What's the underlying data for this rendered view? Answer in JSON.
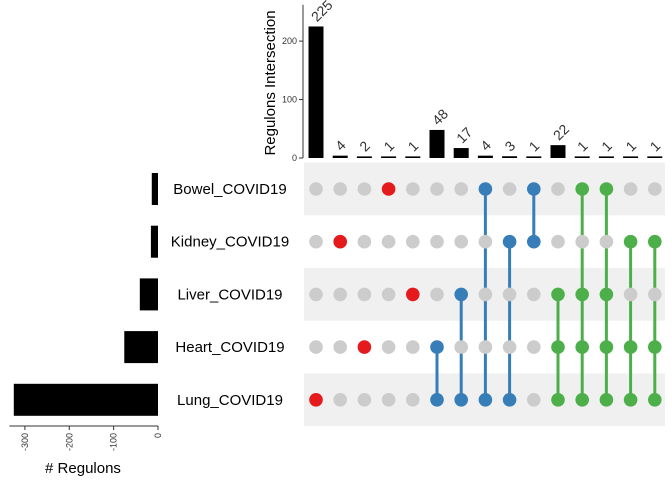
{
  "chart_data": {
    "type": "upset",
    "intersection_axis_label": "Regulons Intersection",
    "set_size_axis_label": "# Regulons",
    "intersection_ticks": [
      0,
      100,
      200
    ],
    "intersection_ylim": [
      0,
      262
    ],
    "set_size_ticks": [
      -300,
      -200,
      -100,
      0
    ],
    "set_size_xlim": [
      -335,
      0
    ],
    "sets": [
      {
        "name": "Bowel_COVID19",
        "size": -14
      },
      {
        "name": "Kidney_COVID19",
        "size": -16
      },
      {
        "name": "Liver_COVID19",
        "size": -41
      },
      {
        "name": "Heart_COVID19",
        "size": -76
      },
      {
        "name": "Lung_COVID19",
        "size": -325
      }
    ],
    "intersections": [
      {
        "value": 225,
        "label": "225",
        "members": [
          4
        ],
        "color": "red"
      },
      {
        "value": 4,
        "label": "4",
        "members": [
          1
        ],
        "color": "red"
      },
      {
        "value": 2,
        "label": "2",
        "members": [
          3
        ],
        "color": "red"
      },
      {
        "value": 1,
        "label": "1",
        "members": [
          0
        ],
        "color": "red"
      },
      {
        "value": 1,
        "label": "1",
        "members": [
          2
        ],
        "color": "red"
      },
      {
        "value": 48,
        "label": "48",
        "members": [
          3,
          4
        ],
        "color": "blue"
      },
      {
        "value": 17,
        "label": "17",
        "members": [
          2,
          4
        ],
        "color": "blue"
      },
      {
        "value": 4,
        "label": "4",
        "members": [
          0,
          4
        ],
        "color": "blue"
      },
      {
        "value": 3,
        "label": "3",
        "members": [
          1,
          4
        ],
        "color": "blue"
      },
      {
        "value": 1,
        "label": "1",
        "members": [
          0,
          1
        ],
        "color": "blue"
      },
      {
        "value": 22,
        "label": "22",
        "members": [
          2,
          3,
          4
        ],
        "color": "green"
      },
      {
        "value": 1,
        "label": "1",
        "members": [
          0,
          2,
          3,
          4
        ],
        "color": "green"
      },
      {
        "value": 1,
        "label": "1",
        "members": [
          0,
          2,
          3,
          4
        ],
        "color": "green"
      },
      {
        "value": 1,
        "label": "1",
        "members": [
          1,
          3,
          4
        ],
        "color": "green"
      },
      {
        "value": 1,
        "label": "1",
        "members": [
          1,
          3,
          4
        ],
        "color": "green"
      }
    ],
    "colors": {
      "red": "#e41a1c",
      "blue": "#377eb8",
      "green": "#4daf4a",
      "inactive": "#cccccc",
      "stripe": "#f0f0f0",
      "bar": "#000000"
    }
  }
}
